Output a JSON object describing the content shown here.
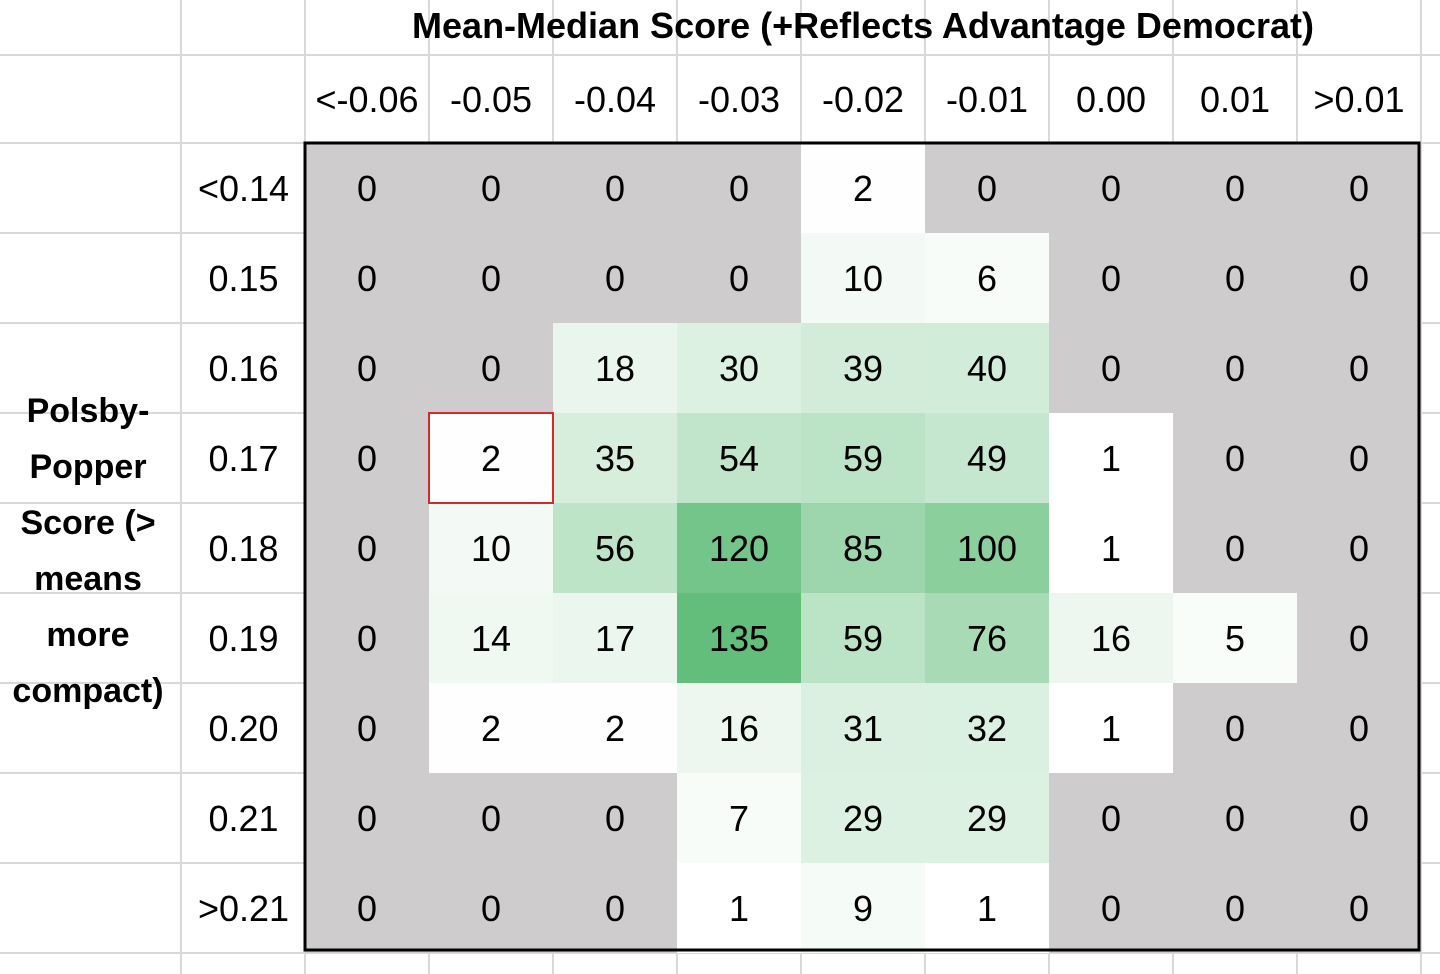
{
  "chart_data": {
    "type": "heatmap",
    "title": "Mean-Median Score (+Reflects Advantage Democrat)",
    "ylabel_lines": [
      "Polsby-",
      "Popper",
      "Score (>",
      "means",
      "more",
      "compact)"
    ],
    "x_categories": [
      "<-0.06",
      "-0.05",
      "-0.04",
      "-0.03",
      "-0.02",
      "-0.01",
      "0.00",
      "0.01",
      ">0.01"
    ],
    "y_categories": [
      "<0.14",
      "0.15",
      "0.16",
      "0.17",
      "0.18",
      "0.19",
      "0.20",
      "0.21",
      ">0.21"
    ],
    "values": [
      [
        0,
        0,
        0,
        0,
        2,
        0,
        0,
        0,
        0
      ],
      [
        0,
        0,
        0,
        0,
        10,
        6,
        0,
        0,
        0
      ],
      [
        0,
        0,
        18,
        30,
        39,
        40,
        0,
        0,
        0
      ],
      [
        0,
        2,
        35,
        54,
        59,
        49,
        1,
        0,
        0
      ],
      [
        0,
        10,
        56,
        120,
        85,
        100,
        1,
        0,
        0
      ],
      [
        0,
        14,
        17,
        135,
        59,
        76,
        16,
        5,
        0
      ],
      [
        0,
        2,
        2,
        16,
        31,
        32,
        1,
        0,
        0
      ],
      [
        0,
        0,
        0,
        7,
        29,
        29,
        0,
        0,
        0
      ],
      [
        0,
        0,
        0,
        1,
        9,
        1,
        0,
        0,
        0
      ]
    ],
    "highlight_cell": {
      "row": 3,
      "col": 1,
      "color": "#d62a2a"
    },
    "zero_color": "#cfcccd",
    "low_color": "#ffffff",
    "high_color": "#63be7b",
    "max_value": 135,
    "grid": true
  }
}
